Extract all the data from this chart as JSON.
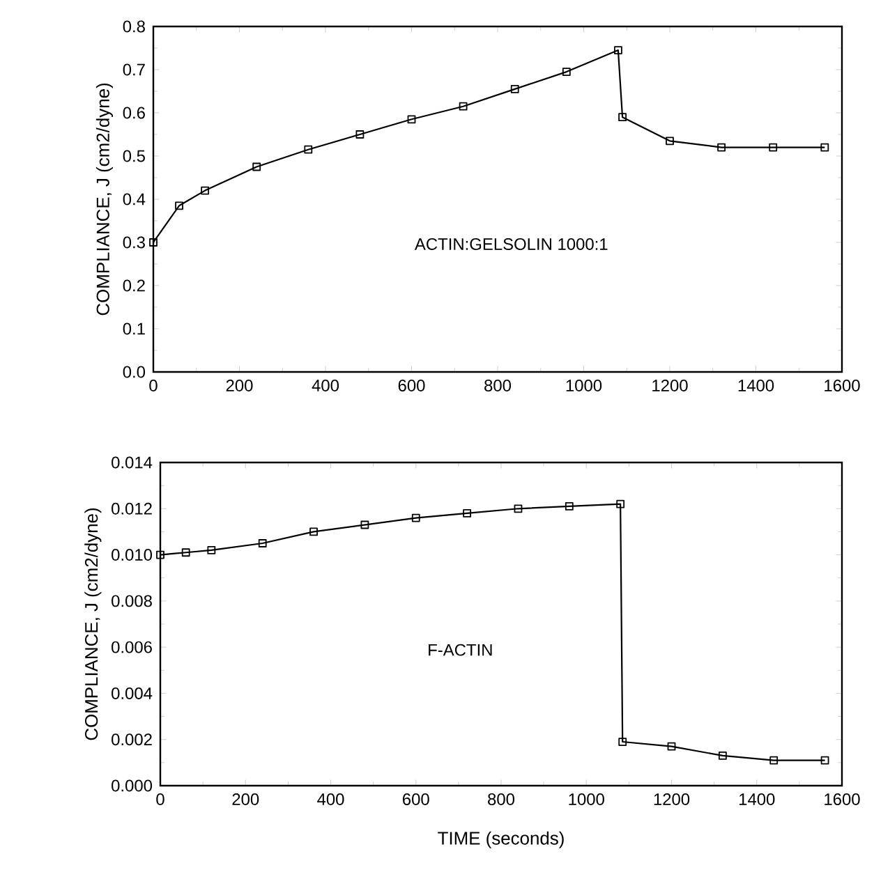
{
  "chart_data": [
    {
      "type": "line",
      "ylabel": "COMPLIANCE, J (cm2/dyne)",
      "annotations": [
        "ACTIN:GELSOLIN   1000:1"
      ],
      "x": [
        0,
        60,
        120,
        240,
        360,
        480,
        600,
        720,
        840,
        960,
        1080,
        1090,
        1200,
        1320,
        1440,
        1560
      ],
      "series": [
        {
          "color": "#000000",
          "values": [
            0.3,
            0.385,
            0.42,
            0.475,
            0.515,
            0.55,
            0.585,
            0.615,
            0.655,
            0.695,
            0.745,
            0.59,
            0.535,
            0.52,
            0.52,
            0.52
          ]
        }
      ],
      "xlim": [
        0,
        1600
      ],
      "xticks": [
        0,
        200,
        400,
        600,
        800,
        1000,
        1200,
        1400,
        1600
      ],
      "ylim": [
        0,
        0.8
      ],
      "yticks": [
        {
          "value": 0,
          "label": "0.0"
        },
        0.1,
        0.2,
        0.3,
        0.4,
        0.5,
        0.6,
        0.7,
        0.8
      ],
      "marker": "square",
      "line_style": "solid",
      "grid": false
    },
    {
      "type": "line",
      "xlabel": "TIME (seconds)",
      "ylabel": "COMPLIANCE, J (cm2/dyne)",
      "annotations": [
        "F-ACTIN"
      ],
      "x": [
        0,
        60,
        120,
        240,
        360,
        480,
        600,
        720,
        840,
        960,
        1080,
        1085,
        1200,
        1320,
        1440,
        1560
      ],
      "series": [
        {
          "color": "#000000",
          "values": [
            0.01,
            0.0101,
            0.0102,
            0.0105,
            0.011,
            0.0113,
            0.0116,
            0.0118,
            0.012,
            0.0121,
            0.0122,
            0.0019,
            0.0017,
            0.0013,
            0.0011,
            0.0011
          ]
        }
      ],
      "xlim": [
        0,
        1600
      ],
      "xticks": [
        0,
        200,
        400,
        600,
        800,
        1000,
        1200,
        1400,
        1600
      ],
      "ylim": [
        0,
        0.014
      ],
      "yticks": [
        {
          "value": 0,
          "label": "0.000"
        },
        {
          "value": 0.002,
          "label": "0.002"
        },
        {
          "value": 0.004,
          "label": "0.004"
        },
        {
          "value": 0.006,
          "label": "0.006"
        },
        {
          "value": 0.008,
          "label": "0.008"
        },
        {
          "value": 0.01,
          "label": "0.010"
        },
        {
          "value": 0.012,
          "label": "0.012"
        },
        {
          "value": 0.014,
          "label": "0.014"
        }
      ],
      "marker": "square",
      "line_style": "solid",
      "grid": false
    }
  ]
}
